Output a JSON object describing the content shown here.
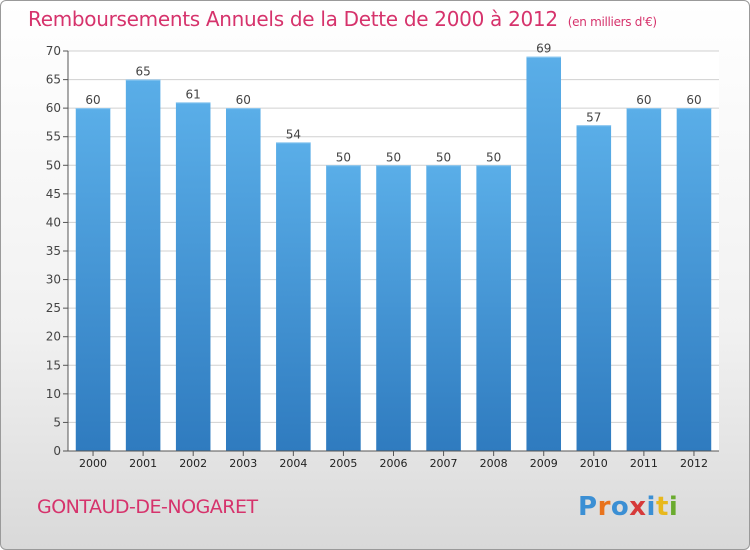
{
  "chart_data": {
    "type": "bar",
    "title": "Remboursements Annuels de la Dette de 2000 à 2012",
    "subtitle": "(en milliers d'€)",
    "categories": [
      "2000",
      "2001",
      "2002",
      "2003",
      "2004",
      "2005",
      "2006",
      "2007",
      "2008",
      "2009",
      "2010",
      "2011",
      "2012"
    ],
    "values": [
      60,
      65,
      61,
      60,
      54,
      50,
      50,
      50,
      50,
      69,
      57,
      60,
      60
    ],
    "ylim": [
      0,
      70
    ],
    "yticks": [
      0,
      5,
      10,
      15,
      20,
      25,
      30,
      35,
      40,
      45,
      50,
      55,
      60,
      65,
      70
    ],
    "grid": true,
    "bar_color_top": "#5aaee8",
    "bar_color_bottom": "#2f7bbf"
  },
  "footer": {
    "town": "GONTAUD-DE-NOGARET",
    "brand": [
      "P",
      "r",
      "o",
      "x",
      "i",
      "t",
      "i"
    ],
    "brand_colors": [
      "#3b8fd4",
      "#e8731d",
      "#3b8fd4",
      "#d63a3a",
      "#3b8fd4",
      "#e8b81d",
      "#6aab2e"
    ]
  },
  "colors": {
    "title": "#d6336c",
    "grid": "#d0d0d0",
    "axis": "#555555"
  }
}
